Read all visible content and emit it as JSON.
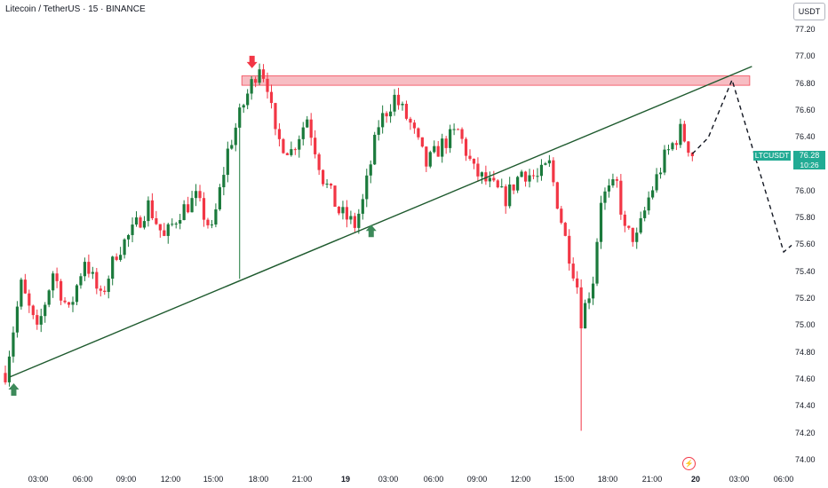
{
  "header": {
    "title": "Litecoin / TetherUS · 15 · BINANCE",
    "currency": "USDT"
  },
  "price_tag": {
    "symbol": "LTCUSDT",
    "price": "76.28",
    "countdown": "10:26"
  },
  "event_icon": "lightning-icon",
  "colors": {
    "up": "#22ab94",
    "up_body": "#1b7a3c",
    "down": "#f23645",
    "trendline": "#1e5a2e",
    "resistance_zone": "#f7b6bd",
    "arrow_up": "#3d8a5a",
    "arrow_down": "#f23645"
  },
  "chart_data": {
    "type": "candlestick",
    "y_ticks": [
      "77.20",
      "77.00",
      "76.80",
      "76.60",
      "76.40",
      "76.20",
      "76.00",
      "75.80",
      "75.60",
      "75.40",
      "75.20",
      "75.00",
      "74.80",
      "74.60",
      "74.40",
      "74.20",
      "74.00"
    ],
    "x_ticks": [
      {
        "label": "03:00",
        "bold": false
      },
      {
        "label": "06:00",
        "bold": false
      },
      {
        "label": "09:00",
        "bold": false
      },
      {
        "label": "12:00",
        "bold": false
      },
      {
        "label": "15:00",
        "bold": false
      },
      {
        "label": "18:00",
        "bold": false
      },
      {
        "label": "21:00",
        "bold": false
      },
      {
        "label": "19",
        "bold": true
      },
      {
        "label": "03:00",
        "bold": false
      },
      {
        "label": "06:00",
        "bold": false
      },
      {
        "label": "09:00",
        "bold": false
      },
      {
        "label": "12:00",
        "bold": false
      },
      {
        "label": "15:00",
        "bold": false
      },
      {
        "label": "18:00",
        "bold": false
      },
      {
        "label": "21:00",
        "bold": false
      },
      {
        "label": "20",
        "bold": true
      },
      {
        "label": "03:00",
        "bold": false
      },
      {
        "label": "06:00",
        "bold": false
      }
    ],
    "ylim": [
      74.0,
      77.32
    ],
    "candle_count": 188,
    "candles_close_path": [
      {
        "t": 0,
        "p": 74.65
      },
      {
        "t": 4,
        "p": 75.3
      },
      {
        "t": 8,
        "p": 74.95
      },
      {
        "t": 12,
        "p": 75.4
      },
      {
        "t": 16,
        "p": 75.1
      },
      {
        "t": 20,
        "p": 75.5
      },
      {
        "t": 24,
        "p": 75.2
      },
      {
        "t": 28,
        "p": 75.55
      },
      {
        "t": 32,
        "p": 75.7
      },
      {
        "t": 36,
        "p": 75.9
      },
      {
        "t": 40,
        "p": 75.65
      },
      {
        "t": 44,
        "p": 75.85
      },
      {
        "t": 48,
        "p": 75.95
      },
      {
        "t": 52,
        "p": 75.7
      },
      {
        "t": 56,
        "p": 76.3
      },
      {
        "t": 60,
        "p": 76.65
      },
      {
        "t": 64,
        "p": 76.95
      },
      {
        "t": 66,
        "p": 76.8
      },
      {
        "t": 68,
        "p": 76.4
      },
      {
        "t": 72,
        "p": 76.3
      },
      {
        "t": 76,
        "p": 76.55
      },
      {
        "t": 80,
        "p": 76.1
      },
      {
        "t": 84,
        "p": 75.85
      },
      {
        "t": 88,
        "p": 75.75
      },
      {
        "t": 90,
        "p": 75.92
      },
      {
        "t": 94,
        "p": 76.5
      },
      {
        "t": 98,
        "p": 76.7
      },
      {
        "t": 102,
        "p": 76.5
      },
      {
        "t": 106,
        "p": 76.2
      },
      {
        "t": 110,
        "p": 76.35
      },
      {
        "t": 114,
        "p": 76.45
      },
      {
        "t": 118,
        "p": 76.15
      },
      {
        "t": 122,
        "p": 76.05
      },
      {
        "t": 126,
        "p": 75.95
      },
      {
        "t": 130,
        "p": 76.15
      },
      {
        "t": 134,
        "p": 76.1
      },
      {
        "t": 137,
        "p": 76.2
      },
      {
        "t": 141,
        "p": 75.65
      },
      {
        "t": 144,
        "p": 75.3
      },
      {
        "t": 145,
        "p": 75.05
      },
      {
        "t": 148,
        "p": 75.35
      },
      {
        "t": 150,
        "p": 75.95
      },
      {
        "t": 154,
        "p": 76.05
      },
      {
        "t": 156,
        "p": 75.7
      },
      {
        "t": 159,
        "p": 75.65
      },
      {
        "t": 162,
        "p": 75.95
      },
      {
        "t": 166,
        "p": 76.25
      },
      {
        "t": 170,
        "p": 76.45
      },
      {
        "t": 173,
        "p": 76.28
      }
    ],
    "spikes": [
      {
        "t": 59,
        "low": 75.35
      },
      {
        "t": 145,
        "low": 74.22
      }
    ],
    "trendline": {
      "t0": 0,
      "p0": 74.62,
      "t1": 188,
      "p1": 76.93
    },
    "resistance_zone": {
      "t0": 60,
      "t1": 187,
      "low": 76.79,
      "high": 76.86
    },
    "projection": [
      {
        "t": 173,
        "p": 76.28
      },
      {
        "t": 177,
        "p": 76.4
      },
      {
        "t": 183,
        "p": 76.83
      },
      {
        "t": 196,
        "p": 75.55
      },
      {
        "t": 198,
        "p": 75.6
      }
    ],
    "markers": [
      {
        "type": "up-arrow",
        "t": 1,
        "p": 74.52
      },
      {
        "type": "down-arrow",
        "t": 61,
        "p": 76.97
      },
      {
        "type": "up-arrow",
        "t": 91,
        "p": 75.7
      }
    ]
  }
}
